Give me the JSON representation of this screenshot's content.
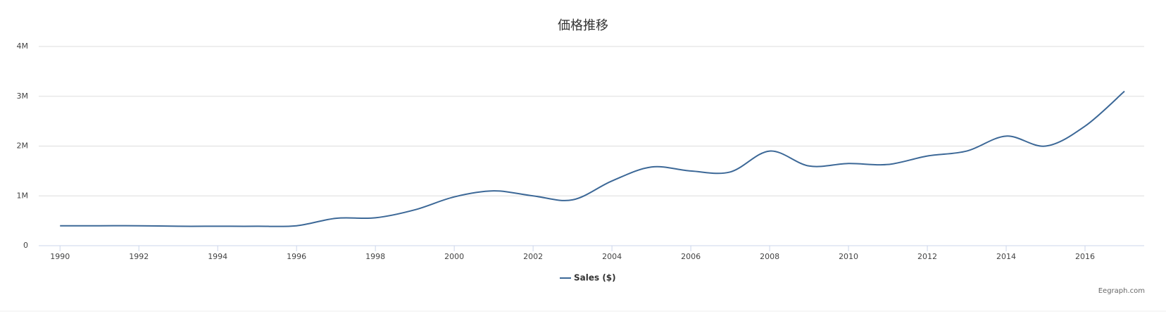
{
  "chart_data": {
    "type": "line",
    "title": "価格推移",
    "x": [
      1990,
      1991,
      1992,
      1993,
      1994,
      1995,
      1996,
      1997,
      1998,
      1999,
      2000,
      2001,
      2002,
      2003,
      2004,
      2005,
      2006,
      2007,
      2008,
      2009,
      2010,
      2011,
      2012,
      2013,
      2014,
      2015,
      2016,
      2017
    ],
    "series": [
      {
        "name": "Sales ($)",
        "color": "#3c6897",
        "values": [
          400000,
          400000,
          400000,
          390000,
          390000,
          390000,
          400000,
          550000,
          560000,
          720000,
          980000,
          1100000,
          1000000,
          920000,
          1300000,
          1580000,
          1500000,
          1480000,
          1900000,
          1600000,
          1650000,
          1630000,
          1800000,
          1900000,
          2200000,
          2000000,
          2400000,
          3100000
        ]
      }
    ],
    "xlim": [
      1989.46,
      2017.5
    ],
    "xticks": [
      1990,
      1992,
      1994,
      1996,
      1998,
      2000,
      2002,
      2004,
      2006,
      2008,
      2010,
      2012,
      2014,
      2016
    ],
    "ylim": [
      0,
      4000000
    ],
    "yticks": [
      0,
      {
        "value": 1000000,
        "label": "1M"
      },
      {
        "value": 2000000,
        "label": "2M"
      },
      {
        "value": 3000000,
        "label": "3M"
      },
      {
        "value": 4000000,
        "label": "4M"
      }
    ],
    "grid": true,
    "legend": "bottom",
    "credit": "Eegraph.com"
  }
}
